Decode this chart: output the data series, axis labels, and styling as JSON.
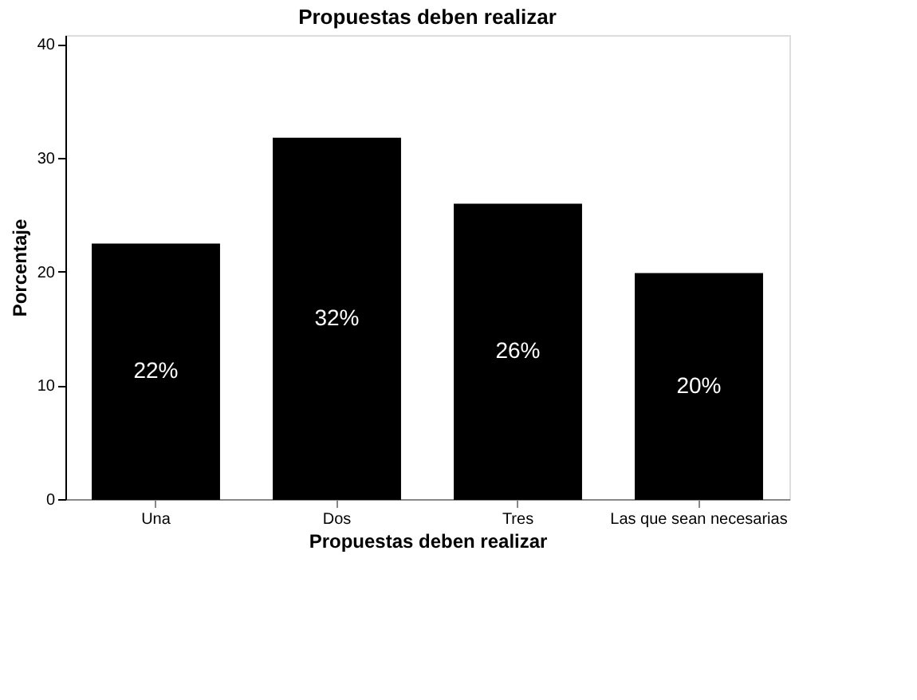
{
  "chart_data": {
    "type": "bar",
    "title": "Propuestas deben realizar",
    "xlabel": "Propuestas deben realizar",
    "ylabel": "Porcentaje",
    "categories": [
      "Una",
      "Dos",
      "Tres",
      "Las que sean necesarias"
    ],
    "values": [
      22.4,
      31.7,
      25.9,
      19.8
    ],
    "value_labels": [
      "22%",
      "32%",
      "26%",
      "20%"
    ],
    "color": "#000000",
    "ylim": [
      0,
      40.8
    ],
    "yticks": [
      0,
      10,
      20,
      30,
      40
    ],
    "grid": false
  }
}
